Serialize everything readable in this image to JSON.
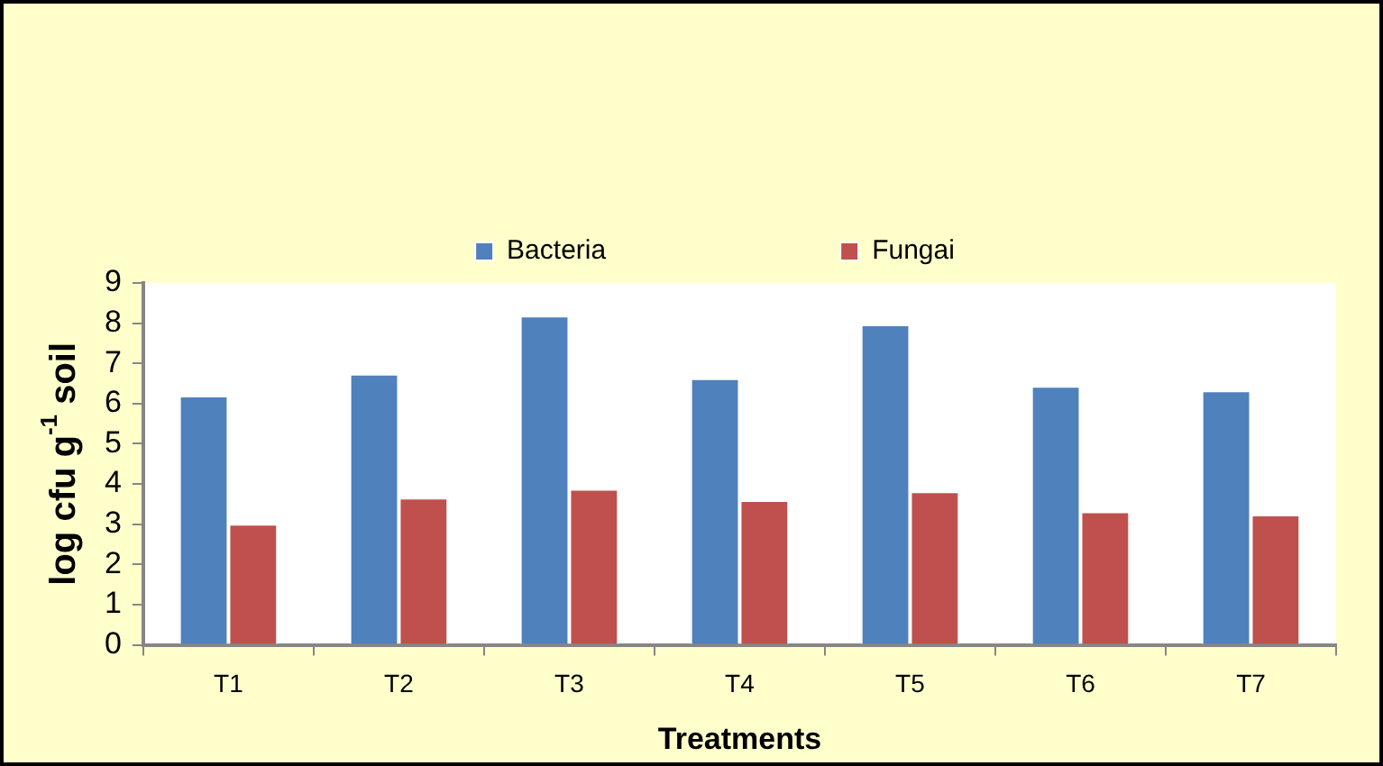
{
  "chart_data": {
    "type": "bar",
    "xlabel": "Treatments",
    "ylabel": "log cfu g$^{-1}$ soil",
    "categories": [
      "T1",
      "T2",
      "T3",
      "T4",
      "T5",
      "T6",
      "T7"
    ],
    "series": [
      {
        "name": "Bacteria",
        "color": "#4f81bd",
        "values": [
          6.2,
          6.74,
          8.19,
          6.63,
          7.97,
          6.44,
          6.33
        ]
      },
      {
        "name": "Fungai",
        "color": "#c0504d",
        "values": [
          3.01,
          3.66,
          3.88,
          3.6,
          3.82,
          3.32,
          3.24
        ]
      }
    ],
    "ylim": [
      0,
      9
    ],
    "yticks": [
      0,
      1,
      2,
      3,
      4,
      5,
      6,
      7,
      8,
      9
    ],
    "grid": false,
    "legend": "top"
  }
}
